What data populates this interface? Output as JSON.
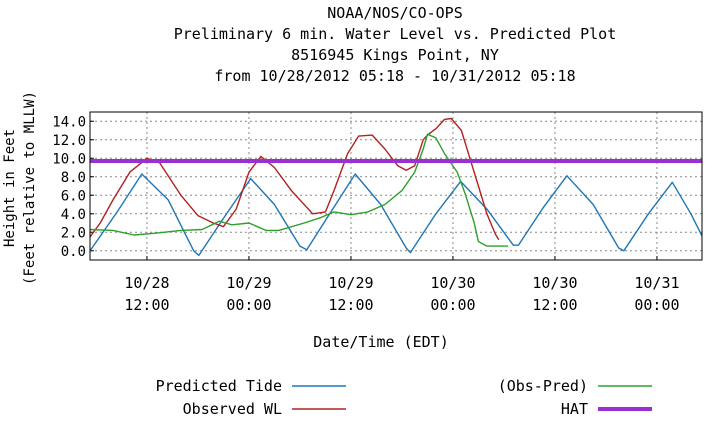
{
  "chart_data": {
    "type": "line",
    "title_lines": [
      "NOAA/NOS/CO-OPS",
      "Preliminary 6 min. Water Level vs. Predicted Plot",
      "8516945 Kings Point, NY",
      "from 10/28/2012 05:18 - 10/31/2012 05:18"
    ],
    "xlabel": "Date/Time (EDT)",
    "ylabel_lines": [
      "Height in Feet",
      "(Feet relative to MLLW)"
    ],
    "xlim": [
      "2012-10-28 05:18",
      "2012-10-31 05:18"
    ],
    "ylim": [
      -1,
      15
    ],
    "y_ticks": [
      0.0,
      2.0,
      4.0,
      6.0,
      8.0,
      10.0,
      12.0,
      14.0
    ],
    "y_tick_labels": [
      "0.0",
      "2.0",
      "4.0",
      "6.0",
      "8.0",
      "10.0",
      "12.0",
      "14.0"
    ],
    "x_ticks": [
      {
        "at": "2012-10-28 12:00",
        "label": [
          "10/28",
          "12:00"
        ]
      },
      {
        "at": "2012-10-29 00:00",
        "label": [
          "10/29",
          "00:00"
        ]
      },
      {
        "at": "2012-10-29 12:00",
        "label": [
          "10/29",
          "12:00"
        ]
      },
      {
        "at": "2012-10-30 00:00",
        "label": [
          "10/30",
          "00:00"
        ]
      },
      {
        "at": "2012-10-30 12:00",
        "label": [
          "10/30",
          "12:00"
        ]
      },
      {
        "at": "2012-10-31 00:00",
        "label": [
          "10/31",
          "00:00"
        ]
      }
    ],
    "grid": true,
    "legend_placement": "bottom",
    "series": [
      {
        "name": "Predicted Tide",
        "color": "#1f77b4",
        "points": [
          [
            "2012-10-28 05:18",
            0.0
          ],
          [
            "2012-10-28 08:30",
            4.2
          ],
          [
            "2012-10-28 11:24",
            8.3
          ],
          [
            "2012-10-28 14:30",
            5.5
          ],
          [
            "2012-10-28 17:30",
            0.0
          ],
          [
            "2012-10-28 18:06",
            -0.5
          ],
          [
            "2012-10-28 21:00",
            3.5
          ],
          [
            "2012-10-29 00:12",
            7.8
          ],
          [
            "2012-10-29 03:00",
            5.0
          ],
          [
            "2012-10-29 06:00",
            0.5
          ],
          [
            "2012-10-29 06:48",
            0.1
          ],
          [
            "2012-10-29 09:30",
            4.0
          ],
          [
            "2012-10-29 12:30",
            8.3
          ],
          [
            "2012-10-29 15:30",
            5.0
          ],
          [
            "2012-10-29 18:30",
            0.3
          ],
          [
            "2012-10-29 19:00",
            -0.2
          ],
          [
            "2012-10-29 22:00",
            4.0
          ],
          [
            "2012-10-30 00:54",
            7.5
          ],
          [
            "2012-10-30 04:00",
            4.5
          ],
          [
            "2012-10-30 07:06",
            0.6
          ],
          [
            "2012-10-30 07:42",
            0.6
          ],
          [
            "2012-10-30 10:30",
            4.5
          ],
          [
            "2012-10-30 13:24",
            8.1
          ],
          [
            "2012-10-30 16:30",
            5.0
          ],
          [
            "2012-10-30 19:30",
            0.3
          ],
          [
            "2012-10-30 20:06",
            0.0
          ],
          [
            "2012-10-30 23:00",
            4.0
          ],
          [
            "2012-10-31 01:48",
            7.4
          ],
          [
            "2012-10-31 04:00",
            4.0
          ],
          [
            "2012-10-31 05:18",
            1.6
          ]
        ]
      },
      {
        "name": "Observed WL",
        "color": "#b22222",
        "points": [
          [
            "2012-10-28 05:18",
            1.5
          ],
          [
            "2012-10-28 06:30",
            3.0
          ],
          [
            "2012-10-28 08:00",
            5.5
          ],
          [
            "2012-10-28 10:00",
            8.5
          ],
          [
            "2012-10-28 12:00",
            10.0
          ],
          [
            "2012-10-28 13:30",
            9.5
          ],
          [
            "2012-10-28 16:00",
            6.0
          ],
          [
            "2012-10-28 18:00",
            3.8
          ],
          [
            "2012-10-28 19:48",
            3.0
          ],
          [
            "2012-10-28 21:00",
            2.6
          ],
          [
            "2012-10-28 22:30",
            4.5
          ],
          [
            "2012-10-29 00:00",
            8.5
          ],
          [
            "2012-10-29 01:24",
            10.2
          ],
          [
            "2012-10-29 03:00",
            9.0
          ],
          [
            "2012-10-29 05:00",
            6.5
          ],
          [
            "2012-10-29 07:30",
            4.0
          ],
          [
            "2012-10-29 09:00",
            4.2
          ],
          [
            "2012-10-29 10:00",
            6.5
          ],
          [
            "2012-10-29 11:36",
            10.5
          ],
          [
            "2012-10-29 12:54",
            12.4
          ],
          [
            "2012-10-29 14:30",
            12.5
          ],
          [
            "2012-10-29 16:00",
            11.0
          ],
          [
            "2012-10-29 17:30",
            9.2
          ],
          [
            "2012-10-29 18:30",
            8.7
          ],
          [
            "2012-10-29 19:30",
            9.2
          ],
          [
            "2012-10-29 20:30",
            12.0
          ],
          [
            "2012-10-29 21:00",
            12.5
          ],
          [
            "2012-10-29 22:00",
            13.2
          ],
          [
            "2012-10-29 23:00",
            14.2
          ],
          [
            "2012-10-29 23:48",
            14.3
          ],
          [
            "2012-10-30 01:00",
            13.0
          ],
          [
            "2012-10-30 02:00",
            10.0
          ],
          [
            "2012-10-30 03:00",
            7.0
          ],
          [
            "2012-10-30 04:00",
            4.0
          ],
          [
            "2012-10-30 05:00",
            1.8
          ],
          [
            "2012-10-30 05:24",
            1.2
          ]
        ]
      },
      {
        "name": "(Obs-Pred)",
        "color": "#2ca02c",
        "points": [
          [
            "2012-10-28 05:18",
            2.3
          ],
          [
            "2012-10-28 08:00",
            2.2
          ],
          [
            "2012-10-28 10:30",
            1.7
          ],
          [
            "2012-10-28 13:00",
            1.9
          ],
          [
            "2012-10-28 16:00",
            2.2
          ],
          [
            "2012-10-28 18:30",
            2.3
          ],
          [
            "2012-10-28 20:30",
            3.2
          ],
          [
            "2012-10-28 22:00",
            2.8
          ],
          [
            "2012-10-29 00:00",
            3.0
          ],
          [
            "2012-10-29 02:00",
            2.2
          ],
          [
            "2012-10-29 03:30",
            2.2
          ],
          [
            "2012-10-29 06:30",
            3.0
          ],
          [
            "2012-10-29 08:30",
            3.6
          ],
          [
            "2012-10-29 10:00",
            4.2
          ],
          [
            "2012-10-29 12:00",
            3.9
          ],
          [
            "2012-10-29 14:00",
            4.2
          ],
          [
            "2012-10-29 16:00",
            5.0
          ],
          [
            "2012-10-29 18:00",
            6.5
          ],
          [
            "2012-10-29 19:30",
            8.5
          ],
          [
            "2012-10-29 20:30",
            11.0
          ],
          [
            "2012-10-29 21:00",
            12.6
          ],
          [
            "2012-10-29 22:00",
            12.2
          ],
          [
            "2012-10-29 23:00",
            10.5
          ],
          [
            "2012-10-30 00:30",
            8.5
          ],
          [
            "2012-10-30 01:30",
            6.0
          ],
          [
            "2012-10-30 02:30",
            3.0
          ],
          [
            "2012-10-30 03:00",
            1.0
          ],
          [
            "2012-10-30 04:00",
            0.5
          ],
          [
            "2012-10-30 06:30",
            0.5
          ]
        ]
      },
      {
        "name": "HAT",
        "color": "#9b30d0",
        "value": 9.7
      }
    ]
  }
}
